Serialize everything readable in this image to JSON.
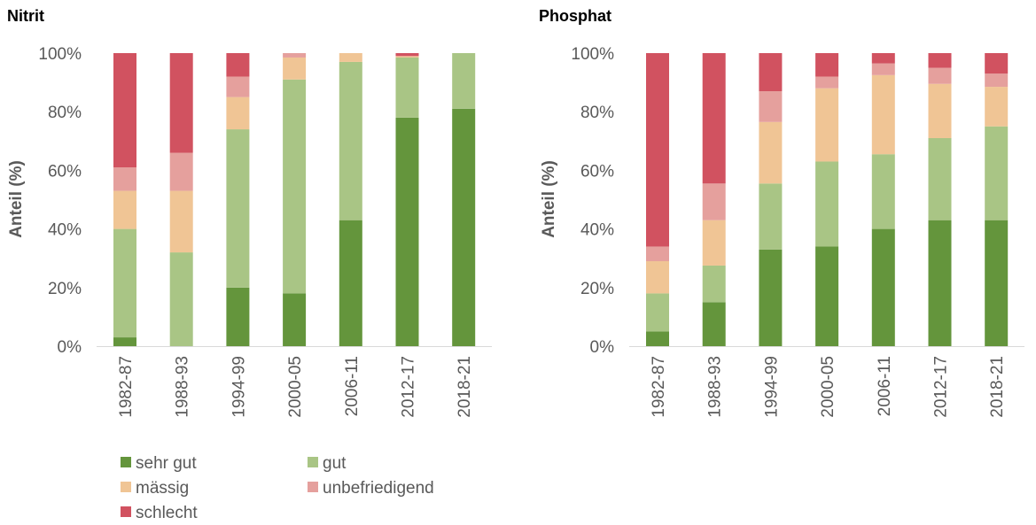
{
  "colors": {
    "sehr gut": "#64953c",
    "gut": "#a9c585",
    "mässig": "#f0c595",
    "unbefriedigend": "#e5a09d",
    "schlecht": "#d15260"
  },
  "legend": [
    "sehr gut",
    "gut",
    "mässig",
    "unbefriedigend",
    "schlecht"
  ],
  "chart_data": [
    {
      "type": "bar",
      "stacked": true,
      "title": "Nitrit",
      "ylabel": "Anteil (%)",
      "ylim": [
        0,
        100
      ],
      "yticks": [
        "0%",
        "20%",
        "40%",
        "60%",
        "80%",
        "100%"
      ],
      "categories": [
        "1982-87",
        "1988-93",
        "1994-99",
        "2000-05",
        "2006-11",
        "2012-17",
        "2018-21"
      ],
      "series": [
        {
          "name": "sehr gut",
          "values": [
            3,
            0,
            20,
            18,
            43,
            78,
            81
          ]
        },
        {
          "name": "gut",
          "values": [
            37,
            32,
            54,
            73,
            54,
            20.5,
            19
          ]
        },
        {
          "name": "mässig",
          "values": [
            13,
            21,
            11,
            7.5,
            3,
            0.5,
            0
          ]
        },
        {
          "name": "unbefriedigend",
          "values": [
            8,
            13,
            7,
            1.5,
            0,
            0,
            0
          ]
        },
        {
          "name": "schlecht",
          "values": [
            39,
            34,
            8,
            0,
            0,
            1,
            0
          ]
        }
      ]
    },
    {
      "type": "bar",
      "stacked": true,
      "title": "Phosphat",
      "ylabel": "Anteil (%)",
      "ylim": [
        0,
        100
      ],
      "yticks": [
        "0%",
        "20%",
        "40%",
        "60%",
        "80%",
        "100%"
      ],
      "categories": [
        "1982-87",
        "1988-93",
        "1994-99",
        "2000-05",
        "2006-11",
        "2012-17",
        "2018-21"
      ],
      "series": [
        {
          "name": "sehr gut",
          "values": [
            5,
            15,
            33,
            34,
            40,
            43,
            43
          ]
        },
        {
          "name": "gut",
          "values": [
            13,
            12.5,
            22.5,
            29,
            25.5,
            28,
            32
          ]
        },
        {
          "name": "mässig",
          "values": [
            11,
            15.5,
            21,
            25,
            27,
            18.5,
            13.5
          ]
        },
        {
          "name": "unbefriedigend",
          "values": [
            5,
            12.5,
            10.5,
            4,
            4,
            5.5,
            4.5
          ]
        },
        {
          "name": "schlecht",
          "values": [
            66,
            44.5,
            13,
            8,
            3.5,
            5,
            7
          ]
        }
      ]
    }
  ]
}
